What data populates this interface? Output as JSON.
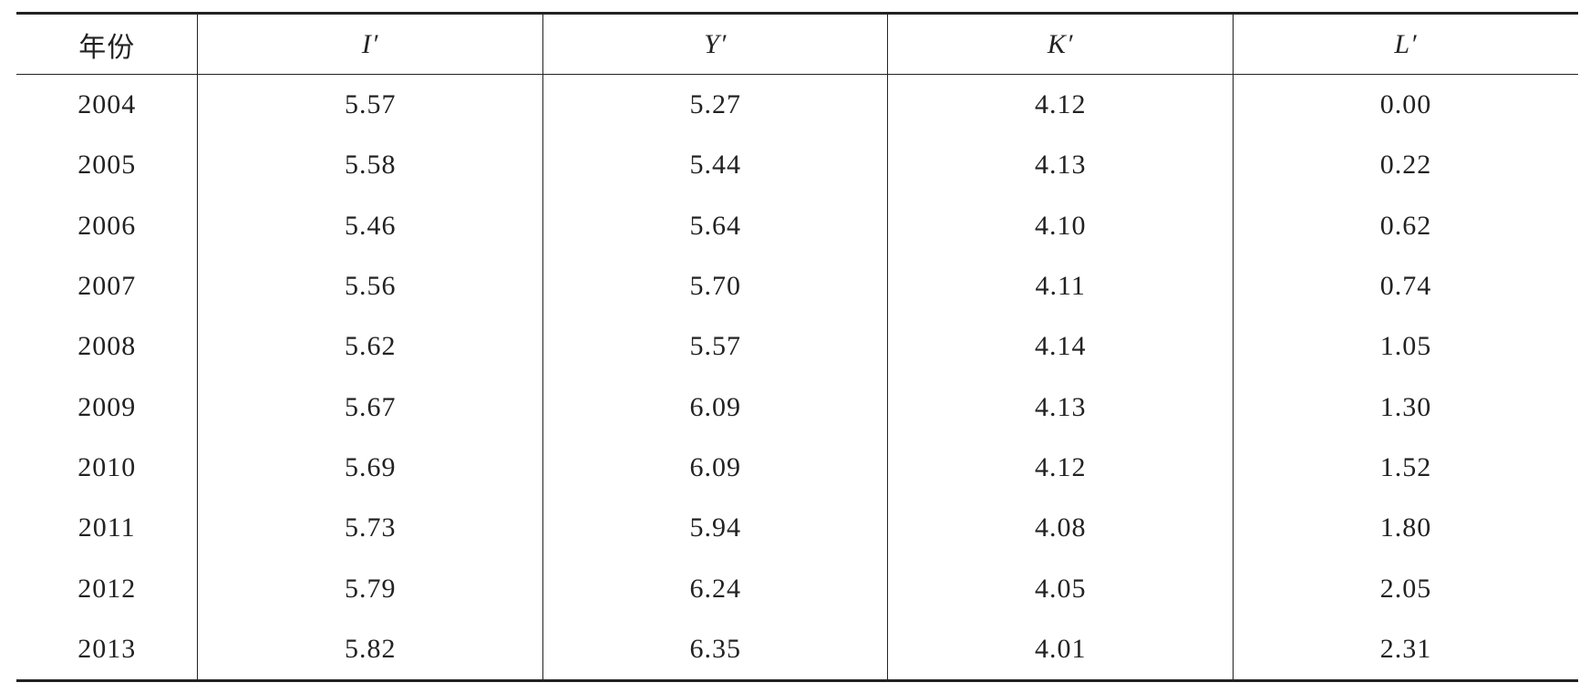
{
  "table": {
    "header": [
      "年份",
      "I′",
      "Y′",
      "K′",
      "L′"
    ],
    "rows": [
      [
        "2004",
        "5.57",
        "5.27",
        "4.12",
        "0.00"
      ],
      [
        "2005",
        "5.58",
        "5.44",
        "4.13",
        "0.22"
      ],
      [
        "2006",
        "5.46",
        "5.64",
        "4.10",
        "0.62"
      ],
      [
        "2007",
        "5.56",
        "5.70",
        "4.11",
        "0.74"
      ],
      [
        "2008",
        "5.62",
        "5.57",
        "4.14",
        "1.05"
      ],
      [
        "2009",
        "5.67",
        "6.09",
        "4.13",
        "1.30"
      ],
      [
        "2010",
        "5.69",
        "6.09",
        "4.12",
        "1.52"
      ],
      [
        "2011",
        "5.73",
        "5.94",
        "4.08",
        "1.80"
      ],
      [
        "2012",
        "5.79",
        "6.24",
        "4.05",
        "2.05"
      ],
      [
        "2013",
        "5.82",
        "6.35",
        "4.01",
        "2.31"
      ]
    ]
  }
}
